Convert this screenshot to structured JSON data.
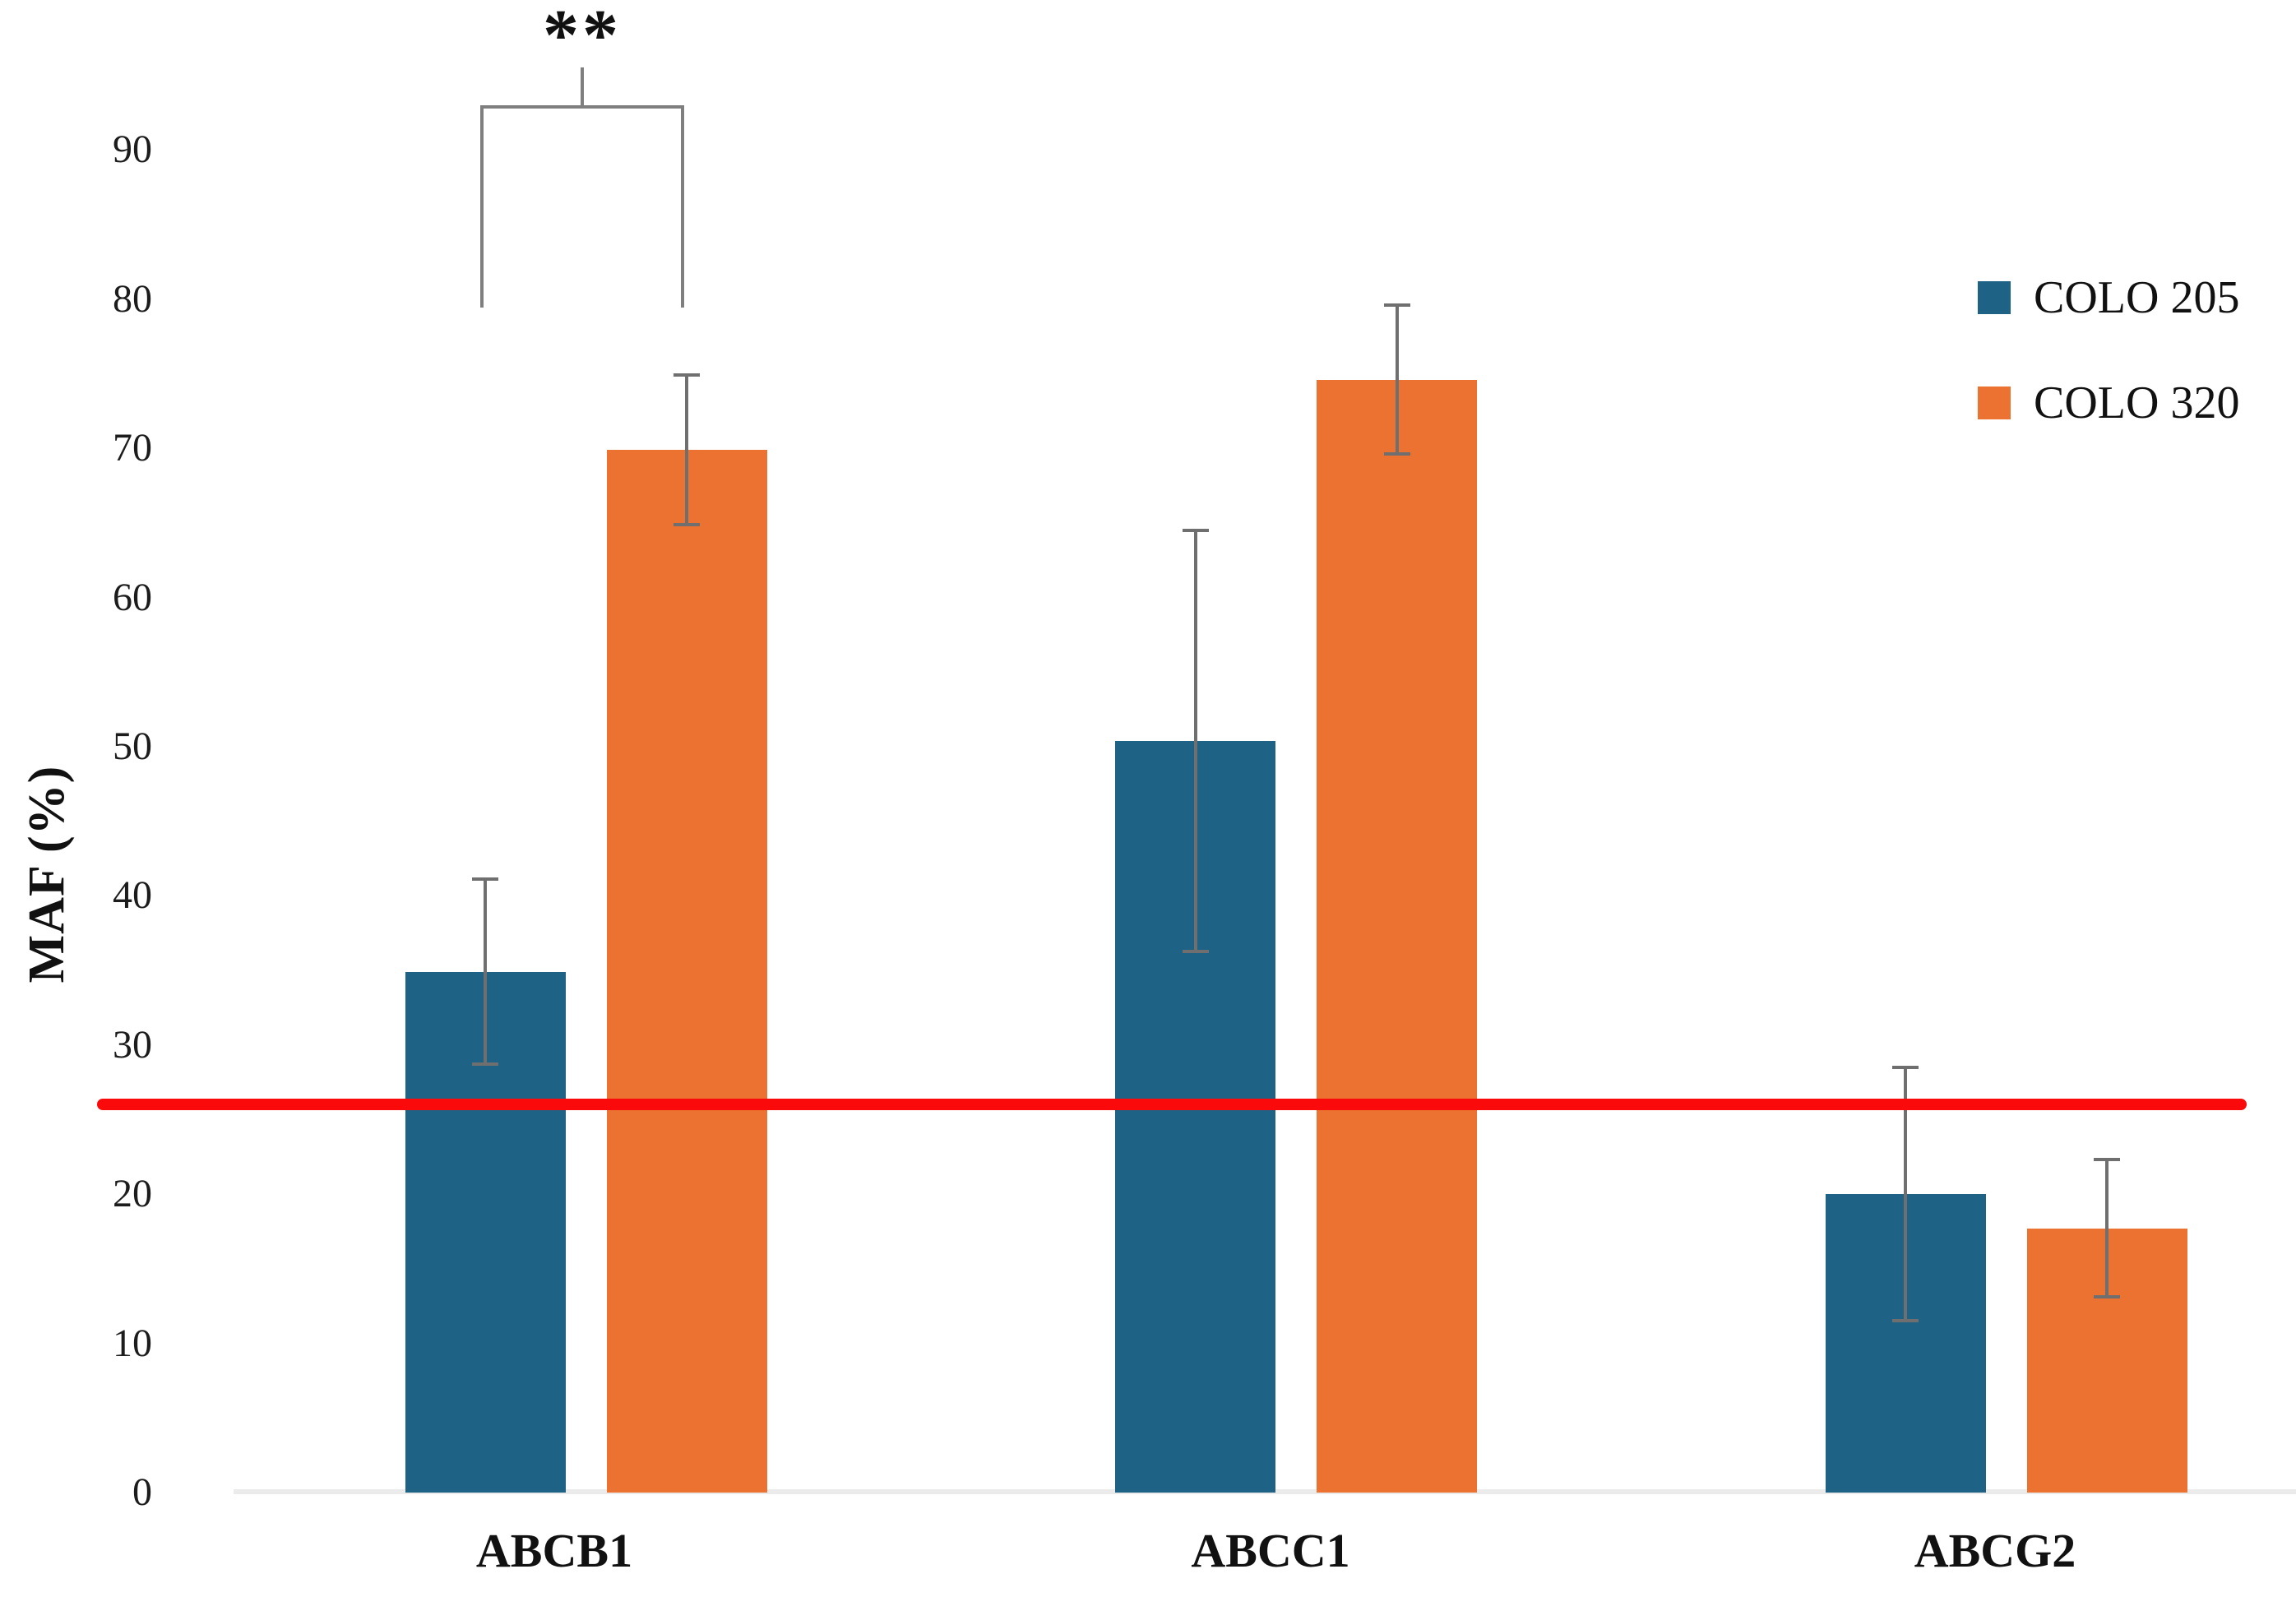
{
  "chart_data": {
    "type": "bar",
    "title": "",
    "xlabel": "",
    "ylabel": "MAF (%)",
    "categories": [
      "ABCB1",
      "ABCC1",
      "ABCG2"
    ],
    "series": [
      {
        "name": "COLO 205",
        "color": "#1E6285",
        "values": [
          34.9,
          50.4,
          20.0
        ],
        "errors": [
          6.2,
          14.1,
          8.5
        ]
      },
      {
        "name": "COLO 320",
        "color": "#EC7232",
        "values": [
          69.9,
          74.6,
          17.7
        ],
        "errors": [
          5.0,
          5.0,
          4.6
        ]
      }
    ],
    "y_ticks": [
      0,
      10,
      20,
      30,
      40,
      50,
      60,
      70,
      80,
      90
    ],
    "ylim": [
      0,
      95
    ],
    "grid": false,
    "legend_position": "upper-right",
    "reference_line": {
      "value": 26,
      "color": "#FA0A0A"
    },
    "significance": {
      "label": "**",
      "category": "ABCB1",
      "between": [
        "COLO 205",
        "COLO 320"
      ]
    }
  }
}
